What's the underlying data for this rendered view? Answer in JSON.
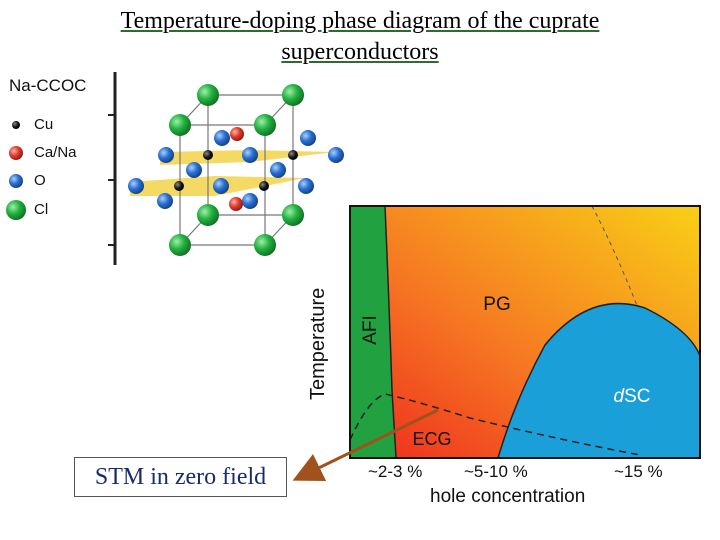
{
  "title": "Temperature-doping phase diagram of the cuprate superconductors",
  "structure": {
    "label": "Na-CCOC",
    "legend": [
      {
        "label": "Cu",
        "color": "#111111"
      },
      {
        "label": "Ca/Na",
        "color": "#e23b2e"
      },
      {
        "label": "O",
        "color": "#2a6fd0"
      },
      {
        "label": "Cl",
        "color": "#22a63c"
      }
    ]
  },
  "diagram": {
    "ylabel": "Temperature",
    "xlabel": "hole concentration",
    "ticks": [
      "~2-3 %",
      "~5-10 %",
      "~15 %"
    ],
    "phases": {
      "afi": "AFI",
      "pg": "PG",
      "dsc_prefix": "d",
      "dsc_suffix": "SC",
      "ecg": "ECG"
    }
  },
  "annotation": {
    "label": "STM in zero field",
    "arrow_color": "#a0521c"
  }
}
